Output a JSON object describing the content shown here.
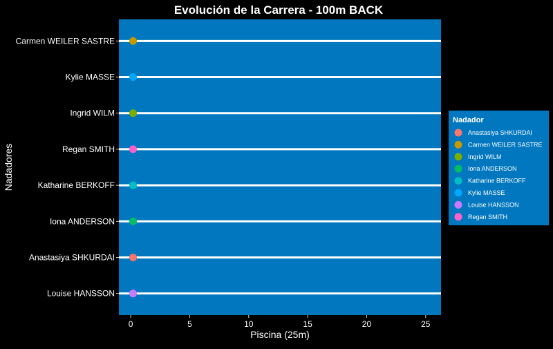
{
  "chart_data": {
    "type": "scatter",
    "title": "Evolución de la Carrera - 100m BACK",
    "xlabel": "Piscina (25m)",
    "ylabel": "Nadadores",
    "xlim": [
      -1,
      26.3
    ],
    "xticks": [
      0,
      5,
      10,
      15,
      20,
      25
    ],
    "grid": false,
    "colors": {
      "panel": "#0077be",
      "background": "#000000",
      "lane_line": "#ffffff",
      "text": "#ffffff"
    },
    "categories": [
      "Carmen WEILER SASTRE",
      "Kylie MASSE",
      "Ingrid WILM",
      "Regan SMITH",
      "Katharine BERKOFF",
      "Iona ANDERSON",
      "Anastasiya SHKURDAI",
      "Louise HANSSON"
    ],
    "points": [
      {
        "swimmer": "Carmen WEILER SASTRE",
        "x": 0.2,
        "color": "#C49A00"
      },
      {
        "swimmer": "Kylie MASSE",
        "x": 0.2,
        "color": "#00A9FF"
      },
      {
        "swimmer": "Ingrid WILM",
        "x": 0.2,
        "color": "#7CAE00"
      },
      {
        "swimmer": "Regan SMITH",
        "x": 0.2,
        "color": "#FF61CC"
      },
      {
        "swimmer": "Katharine BERKOFF",
        "x": 0.2,
        "color": "#00BFC4"
      },
      {
        "swimmer": "Iona ANDERSON",
        "x": 0.2,
        "color": "#00BE67"
      },
      {
        "swimmer": "Anastasiya SHKURDAI",
        "x": 0.2,
        "color": "#F8766D"
      },
      {
        "swimmer": "Louise HANSSON",
        "x": 0.2,
        "color": "#C77CFF"
      }
    ],
    "legend": {
      "title": "Nadador",
      "placement": "right",
      "entries": [
        {
          "label": "Anastasiya SHKURDAI",
          "color": "#F8766D"
        },
        {
          "label": "Carmen WEILER SASTRE",
          "color": "#C49A00"
        },
        {
          "label": "Ingrid WILM",
          "color": "#7CAE00"
        },
        {
          "label": "Iona ANDERSON",
          "color": "#00BE67"
        },
        {
          "label": "Katharine BERKOFF",
          "color": "#00BFC4"
        },
        {
          "label": "Kylie MASSE",
          "color": "#00A9FF"
        },
        {
          "label": "Louise HANSSON",
          "color": "#C77CFF"
        },
        {
          "label": "Regan SMITH",
          "color": "#FF61CC"
        }
      ]
    }
  }
}
